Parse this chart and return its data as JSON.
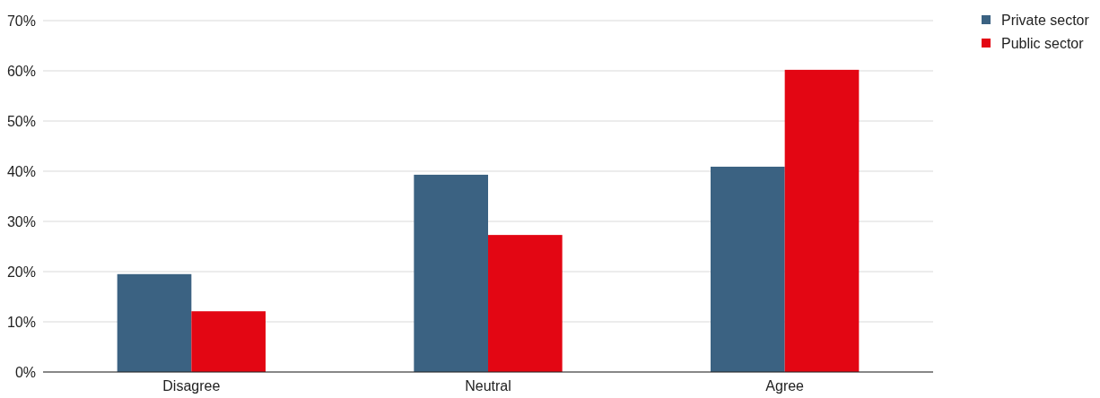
{
  "chart_data": {
    "type": "bar",
    "categories": [
      "Disagree",
      "Neutral",
      "Agree"
    ],
    "series": [
      {
        "name": "Private sector",
        "color": "#3b6282",
        "values": [
          19.5,
          39.3,
          40.9
        ]
      },
      {
        "name": "Public sector",
        "color": "#e30613",
        "values": [
          12.1,
          27.3,
          60.2
        ]
      }
    ],
    "ylim": [
      0,
      70
    ],
    "yticks": [
      {
        "value": 0,
        "label": "0%"
      },
      {
        "value": 10,
        "label": "10%"
      },
      {
        "value": 20,
        "label": "20%"
      },
      {
        "value": 30,
        "label": "30%"
      },
      {
        "value": 40,
        "label": "40%"
      },
      {
        "value": 50,
        "label": "50%"
      },
      {
        "value": 60,
        "label": "60%"
      },
      {
        "value": 70,
        "label": "70%"
      }
    ],
    "grid": "y",
    "legend": "top right"
  }
}
